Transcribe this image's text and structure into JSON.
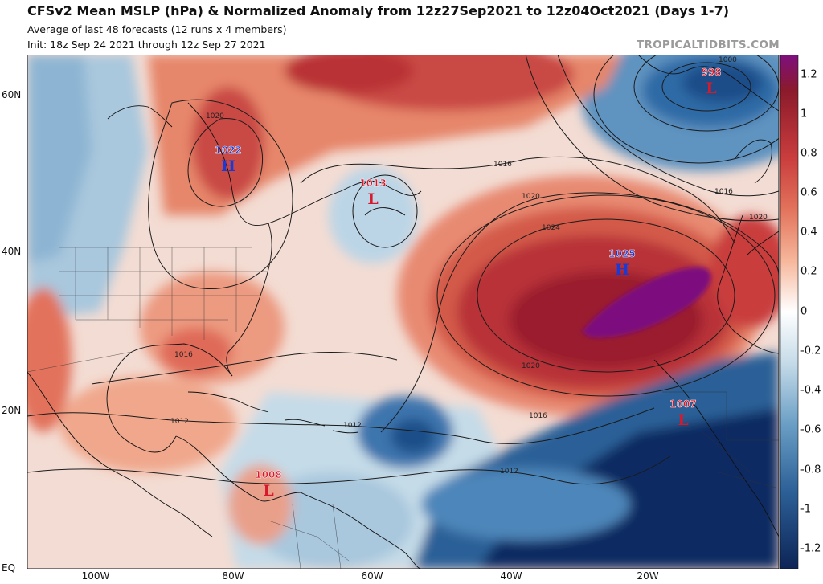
{
  "header": {
    "title": "CFSv2 Mean MSLP (hPa) & Normalized Anomaly from 12z27Sep2021 to 12z04Oct2021 (Days 1-7)",
    "subtitle": "Average of last 48 forecasts (12 runs x 4 members)",
    "init": "Init: 18z Sep 24 2021 through 12z Sep 27 2021",
    "watermark": "TROPICALTIDBITS.COM"
  },
  "axes": {
    "lat_labels": [
      "60N",
      "40N",
      "20N",
      "EQ"
    ],
    "lon_labels": [
      "100W",
      "80W",
      "60W",
      "40W",
      "20W"
    ]
  },
  "colorbar": {
    "labels": [
      "1.2",
      "1",
      "0.8",
      "0.6",
      "0.4",
      "0.2",
      "0",
      "-0.2",
      "-0.4",
      "-0.6",
      "-0.8",
      "-1",
      "-1.2"
    ],
    "colors": {
      "max": "#7d0f7e",
      "pos_strong": "#8b1a2b",
      "pos": "#c93d3d",
      "pos_mid": "#e2725b",
      "pos_light": "#f6b69a",
      "neutral": "#ffffff",
      "neg_light": "#c5dbe8",
      "neg": "#6a9ec5",
      "neg_strong": "#2c6097",
      "min": "#0d2457"
    }
  },
  "systems": [
    {
      "type": "H",
      "value": "1022",
      "color": "#1a3ad6"
    },
    {
      "type": "L",
      "value": "1013",
      "color": "#d8192b"
    },
    {
      "type": "H",
      "value": "1025",
      "color": "#1a3ad6"
    },
    {
      "type": "L",
      "value": "998",
      "color": "#d8192b"
    },
    {
      "type": "L",
      "value": "1007",
      "color": "#d8192b"
    },
    {
      "type": "L",
      "value": "1008",
      "color": "#d8192b"
    }
  ],
  "contour_labels": [
    "1000",
    "1016",
    "1020",
    "1024",
    "1020",
    "1016",
    "1016",
    "1020",
    "1016",
    "1012",
    "1012",
    "1012",
    "1020"
  ]
}
